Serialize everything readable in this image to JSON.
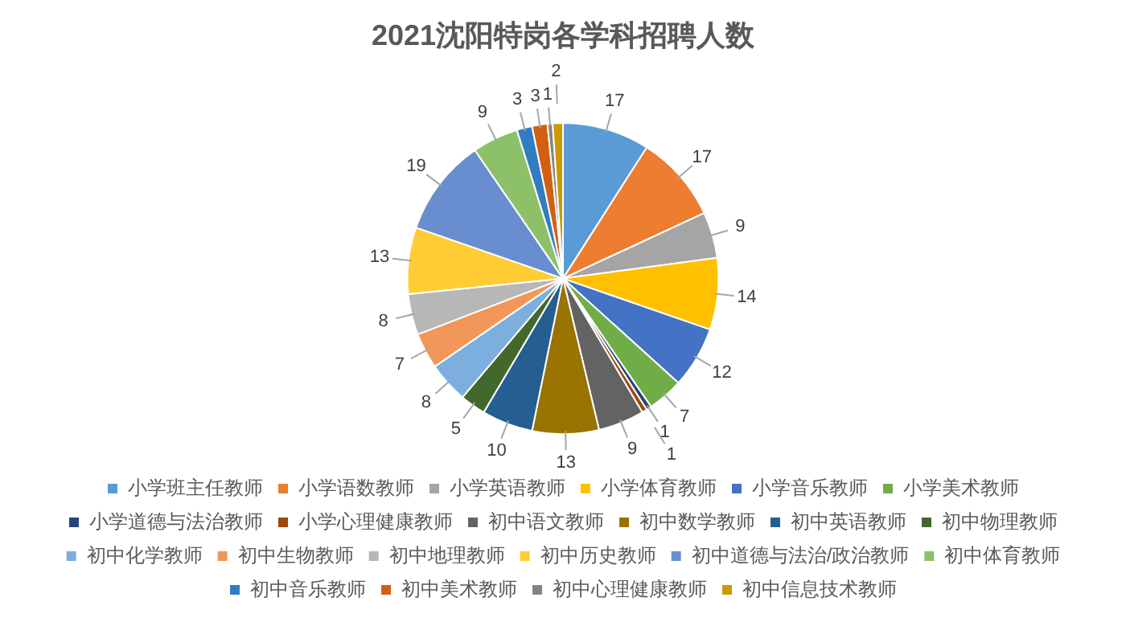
{
  "chart_data": {
    "type": "pie",
    "title": "2021沈阳特岗各学科招聘人数",
    "categories": [
      "小学班主任教师",
      "小学语数教师",
      "小学英语教师",
      "小学体育教师",
      "小学音乐教师",
      "小学美术教师",
      "小学道德与法治教师",
      "小学心理健康教师",
      "初中语文教师",
      "初中数学教师",
      "初中英语教师",
      "初中物理教师",
      "初中化学教师",
      "初中生物教师",
      "初中地理教师",
      "初中历史教师",
      "初中道德与法治/政治教师",
      "初中体育教师",
      "初中音乐教师",
      "初中美术教师",
      "初中心理健康教师",
      "初中信息技术教师"
    ],
    "values": [
      17,
      17,
      9,
      14,
      12,
      7,
      1,
      1,
      9,
      13,
      10,
      5,
      8,
      7,
      8,
      13,
      19,
      9,
      3,
      3,
      1,
      2
    ],
    "colors": [
      "#5b9bd5",
      "#ed7d31",
      "#a5a5a5",
      "#ffc000",
      "#4472c4",
      "#70ad47",
      "#264478",
      "#9e480e",
      "#636363",
      "#997300",
      "#255e91",
      "#43682b",
      "#7cafdd",
      "#f1975a",
      "#b7b7b7",
      "#ffcd33",
      "#698ed0",
      "#8cc168",
      "#327dc2",
      "#d26012",
      "#848484",
      "#cc9a00"
    ],
    "data_labels": true,
    "legend": "bottom"
  }
}
